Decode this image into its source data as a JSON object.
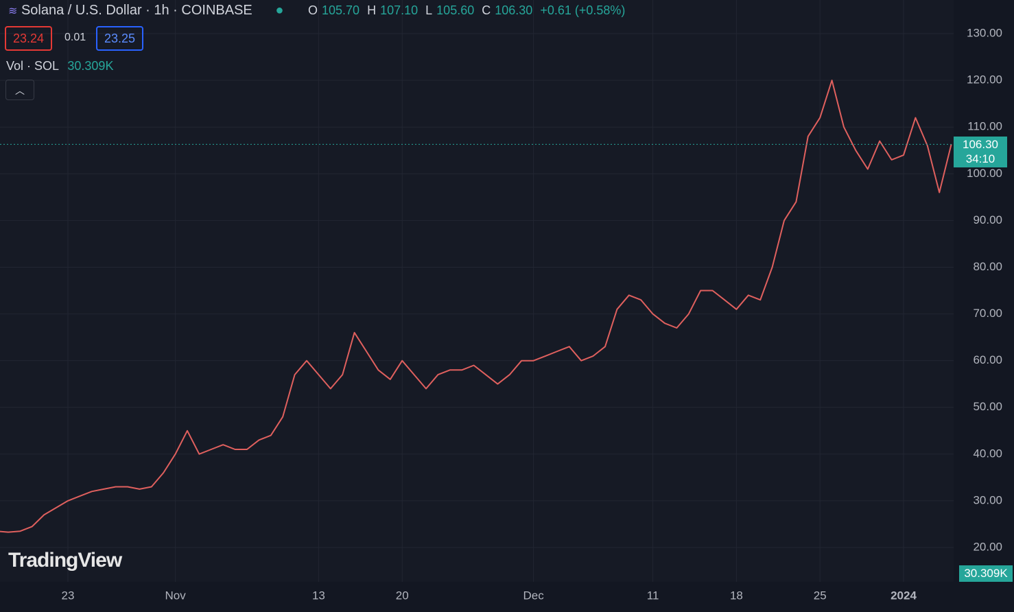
{
  "header": {
    "symbol": "Solana / U.S. Dollar · 1h · COINBASE",
    "open_label": "O",
    "open": "105.70",
    "high_label": "H",
    "high": "107.10",
    "low_label": "L",
    "low": "105.60",
    "close_label": "C",
    "close": "106.30",
    "change": "+0.61 (+0.58%)",
    "sell": "23.24",
    "spread": "0.01",
    "buy": "23.25",
    "volume_label": "Vol · SOL",
    "volume": "30.309K"
  },
  "price_tag": {
    "price": "106.30",
    "countdown": "34:10"
  },
  "volume_tag": "30.309K",
  "watermark": "TradingView",
  "chart_data": {
    "type": "line",
    "categories": [
      null,
      null,
      null,
      null,
      null,
      null,
      "23",
      null,
      null,
      null,
      null,
      null,
      null,
      null,
      null,
      "Nov",
      null,
      null,
      null,
      null,
      null,
      null,
      null,
      null,
      null,
      null,
      null,
      "13",
      null,
      null,
      null,
      null,
      null,
      null,
      "20",
      null,
      null,
      null,
      null,
      null,
      null,
      null,
      null,
      null,
      null,
      "Dec",
      null,
      null,
      null,
      null,
      null,
      null,
      null,
      null,
      null,
      "11",
      null,
      null,
      null,
      null,
      null,
      null,
      "18",
      null,
      null,
      null,
      null,
      null,
      null,
      "25",
      null,
      null,
      null,
      null,
      null,
      null,
      "2024",
      null,
      null,
      null,
      null
    ],
    "series": [
      {
        "color": "#e0605e",
        "values": [
          23.5,
          23.3,
          23.5,
          24.5,
          27,
          28.5,
          30,
          31,
          32,
          32.5,
          33,
          33,
          32.5,
          33,
          36,
          40,
          45,
          40,
          41,
          42,
          41,
          41,
          43,
          44,
          48,
          57,
          60,
          57,
          54,
          57,
          66,
          62,
          58,
          56,
          60,
          57,
          54,
          57,
          58,
          58,
          59,
          57,
          55,
          57,
          60,
          60,
          61,
          62,
          63,
          60,
          61,
          63,
          71,
          74,
          73,
          70,
          68,
          67,
          70,
          75,
          75,
          73,
          71,
          74,
          73,
          80,
          90,
          94,
          108,
          112,
          120,
          110,
          105,
          101,
          107,
          103,
          104,
          112,
          106,
          96,
          106.3
        ]
      }
    ],
    "ylim": [
      12.66,
      137.2
    ],
    "yticks": [
      {
        "value": 20,
        "label": "20.00"
      },
      {
        "value": 30,
        "label": "30.00"
      },
      {
        "value": 40,
        "label": "40.00"
      },
      {
        "value": 50,
        "label": "50.00"
      },
      {
        "value": 60,
        "label": "60.00"
      },
      {
        "value": 70,
        "label": "70.00"
      },
      {
        "value": 80,
        "label": "80.00"
      },
      {
        "value": 90,
        "label": "90.00"
      },
      {
        "value": 100,
        "label": "100.00"
      },
      {
        "value": 110,
        "label": "110.00"
      },
      {
        "value": 120,
        "label": "120.00"
      },
      {
        "value": 130,
        "label": "130.00"
      }
    ],
    "last_price": 106.3,
    "grid": true
  }
}
